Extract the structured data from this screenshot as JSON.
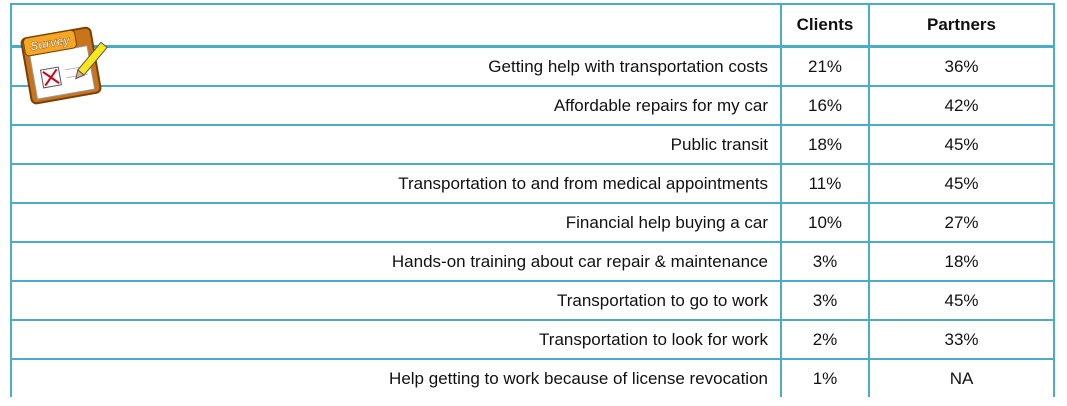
{
  "icon": {
    "label": "Survey"
  },
  "table": {
    "header": [
      "Clients",
      "Partners"
    ],
    "rows": [
      [
        "Getting help with transportation costs",
        "21%",
        "36%"
      ],
      [
        "Affordable repairs for my car",
        "16%",
        "42%"
      ],
      [
        "Public transit",
        "18%",
        "45%"
      ],
      [
        "Transportation to and from medical appointments",
        "11%",
        "45%"
      ],
      [
        "Financial help buying a car",
        "10%",
        "27%"
      ],
      [
        "Hands-on training about car repair & maintenance",
        "3%",
        "18%"
      ],
      [
        "Transportation to go to work",
        "3%",
        "45%"
      ],
      [
        "Transportation to look for work",
        "2%",
        "33%"
      ],
      [
        "Help getting to work because of license revocation",
        "1%",
        "NA"
      ]
    ]
  }
}
